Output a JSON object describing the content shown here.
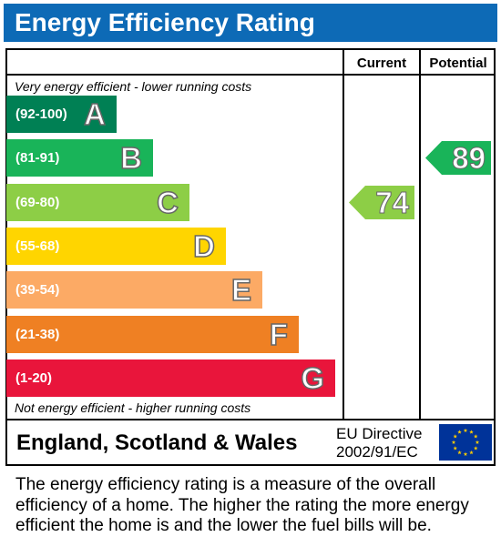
{
  "header": {
    "title": "Energy Efficiency Rating"
  },
  "chart_data": {
    "type": "table",
    "columns": [
      "Current",
      "Potential"
    ],
    "top_note": "Very energy efficient - lower running costs",
    "bottom_note": "Not energy efficient - higher running costs",
    "bands": [
      {
        "range": "(92-100)",
        "letter": "A",
        "color": "#008054"
      },
      {
        "range": "(81-91)",
        "letter": "B",
        "color": "#19b459"
      },
      {
        "range": "(69-80)",
        "letter": "C",
        "color": "#8dce46"
      },
      {
        "range": "(55-68)",
        "letter": "D",
        "color": "#ffd500"
      },
      {
        "range": "(39-54)",
        "letter": "E",
        "color": "#fcaa65"
      },
      {
        "range": "(21-38)",
        "letter": "F",
        "color": "#ef8023"
      },
      {
        "range": "(1-20)",
        "letter": "G",
        "color": "#e9153b"
      }
    ],
    "current": {
      "value": 74,
      "band": "C",
      "color": "#8dce46"
    },
    "potential": {
      "value": 89,
      "band": "B",
      "color": "#19b459"
    }
  },
  "footer": {
    "country": "England, Scotland & Wales",
    "directive_line1": "EU Directive",
    "directive_line2": "2002/91/EC",
    "flag_colors": {
      "background": "#003399",
      "stars": "#ffcc00"
    }
  },
  "description": "The energy efficiency rating is a measure of the overall efficiency of a home. The higher the rating the more energy efficient the home is and the lower the fuel bills will be."
}
